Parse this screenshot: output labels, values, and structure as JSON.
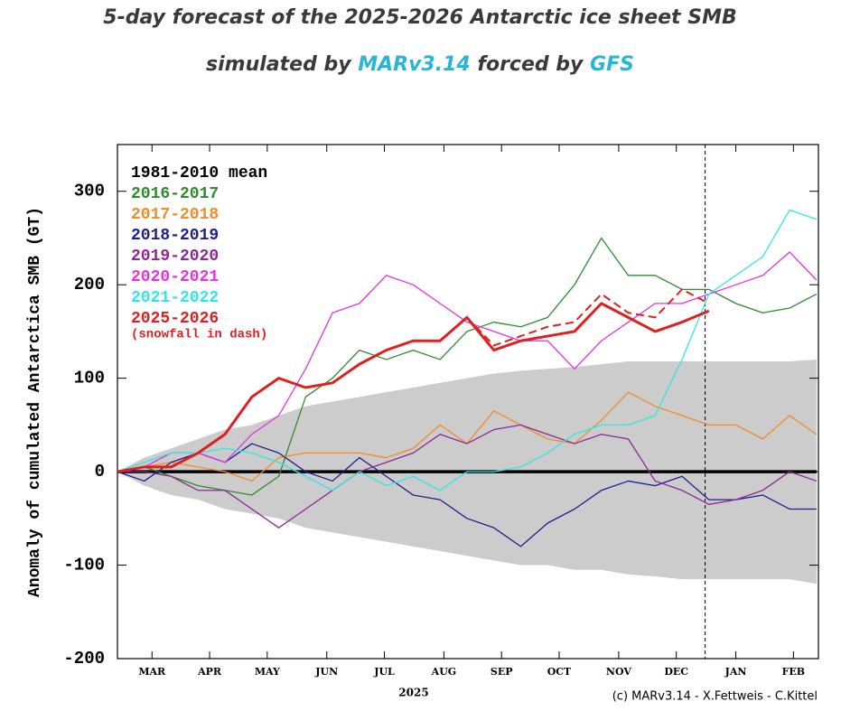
{
  "chart_data": {
    "type": "line",
    "title": "5-day forecast of the 2025-2026 Antarctic ice sheet SMB",
    "subtitle_parts": [
      "simulated by ",
      "MARv3.14",
      " forced by ",
      "GFS"
    ],
    "subtitle_colors": [
      "#3a3a3a",
      "#29b6d6",
      "#3a3a3a",
      "#29b6d6"
    ],
    "y_label": "Anomaly of cumulated Antarctica SMB (GT)",
    "x_label": "2025",
    "credit": "(c) MARv3.14 - X.Fettweis - C.Kittel",
    "xlim": [
      0,
      365
    ],
    "ylim": [
      -200,
      350
    ],
    "yticks": [
      -200,
      -100,
      0,
      100,
      200,
      300
    ],
    "xticks": [
      {
        "value": 18,
        "label": "MAR"
      },
      {
        "value": 48,
        "label": "APR"
      },
      {
        "value": 78,
        "label": "MAY"
      },
      {
        "value": 109,
        "label": "JUN"
      },
      {
        "value": 139,
        "label": "JUL"
      },
      {
        "value": 170,
        "label": "AUG"
      },
      {
        "value": 200,
        "label": "SEP"
      },
      {
        "value": 230,
        "label": "OCT"
      },
      {
        "value": 261,
        "label": "NOV"
      },
      {
        "value": 291,
        "label": "DEC"
      },
      {
        "value": 322,
        "label": "JAN"
      },
      {
        "value": 352,
        "label": "FEB"
      }
    ],
    "forecast_line": 306,
    "x": [
      0,
      14,
      28,
      42,
      56,
      70,
      84,
      98,
      112,
      126,
      140,
      154,
      168,
      182,
      196,
      210,
      224,
      238,
      252,
      266,
      280,
      294,
      308,
      322,
      336,
      350,
      364
    ],
    "band": {
      "color": "#cccccc",
      "upper": [
        0,
        15,
        25,
        35,
        45,
        50,
        60,
        70,
        75,
        80,
        85,
        90,
        95,
        100,
        105,
        108,
        110,
        112,
        115,
        118,
        118,
        118,
        118,
        118,
        118,
        118,
        120
      ],
      "lower": [
        0,
        -15,
        -25,
        -30,
        -40,
        -45,
        -50,
        -60,
        -65,
        -70,
        -75,
        -80,
        -85,
        -90,
        -95,
        -100,
        -100,
        -105,
        -105,
        -110,
        -112,
        -115,
        -115,
        -115,
        -115,
        -115,
        -120
      ]
    },
    "series": [
      {
        "name": "1981-2010 mean",
        "color": "#000000",
        "width": 3.5,
        "values": [
          0,
          0,
          0,
          0,
          0,
          0,
          0,
          0,
          0,
          0,
          0,
          0,
          0,
          0,
          0,
          0,
          0,
          0,
          0,
          0,
          0,
          0,
          0,
          0,
          0,
          0,
          0
        ]
      },
      {
        "name": "2016-2017",
        "color": "#2e8b2e",
        "width": 1.3,
        "values": [
          0,
          5,
          -5,
          -15,
          -20,
          -25,
          -5,
          80,
          100,
          130,
          120,
          130,
          120,
          150,
          160,
          155,
          165,
          200,
          250,
          210,
          210,
          195,
          195,
          180,
          170,
          175,
          190
        ]
      },
      {
        "name": "2017-2018",
        "color": "#f08c28",
        "width": 1.3,
        "values": [
          0,
          5,
          10,
          5,
          0,
          -10,
          15,
          20,
          20,
          20,
          15,
          25,
          50,
          30,
          65,
          50,
          35,
          30,
          55,
          85,
          70,
          60,
          50,
          50,
          35,
          60,
          40
        ]
      },
      {
        "name": "2018-2019",
        "color": "#1e1e8c",
        "width": 1.3,
        "values": [
          0,
          -10,
          10,
          20,
          10,
          30,
          20,
          0,
          -10,
          15,
          -5,
          -25,
          -30,
          -50,
          -60,
          -80,
          -55,
          -40,
          -20,
          -10,
          -15,
          -5,
          -30,
          -30,
          -25,
          -40,
          -40
        ]
      },
      {
        "name": "2019-2020",
        "color": "#8c2896",
        "width": 1.3,
        "values": [
          0,
          0,
          -5,
          -20,
          -20,
          -40,
          -60,
          -40,
          -20,
          0,
          10,
          20,
          40,
          30,
          45,
          50,
          40,
          30,
          40,
          35,
          -10,
          -20,
          -35,
          -30,
          -20,
          0,
          -10
        ]
      },
      {
        "name": "2020-2021",
        "color": "#e632e6",
        "width": 1.3,
        "values": [
          0,
          5,
          20,
          20,
          10,
          40,
          60,
          110,
          170,
          180,
          210,
          200,
          180,
          160,
          150,
          140,
          140,
          110,
          140,
          160,
          180,
          180,
          190,
          200,
          210,
          235,
          205
        ]
      },
      {
        "name": "2021-2022",
        "color": "#32e6e6",
        "width": 1.3,
        "values": [
          0,
          10,
          20,
          20,
          25,
          20,
          10,
          -5,
          -20,
          0,
          -15,
          -5,
          -20,
          0,
          0,
          5,
          20,
          40,
          50,
          50,
          60,
          120,
          190,
          210,
          230,
          280,
          270
        ]
      },
      {
        "name": "2025-2026",
        "color": "#e02020",
        "width": 3,
        "values": [
          0,
          5,
          5,
          20,
          40,
          80,
          100,
          90,
          95,
          115,
          130,
          140,
          140,
          165,
          130,
          140,
          145,
          150,
          180,
          165,
          150,
          160,
          172,
          null,
          null,
          null,
          null
        ]
      },
      {
        "name": "(snowfall in dash)",
        "color": "#e02020",
        "width": 2,
        "dash": true,
        "values": [
          null,
          null,
          null,
          null,
          null,
          null,
          null,
          null,
          null,
          null,
          null,
          null,
          null,
          165,
          135,
          145,
          155,
          160,
          190,
          170,
          165,
          195,
          180,
          null,
          null,
          null,
          null
        ]
      }
    ]
  }
}
